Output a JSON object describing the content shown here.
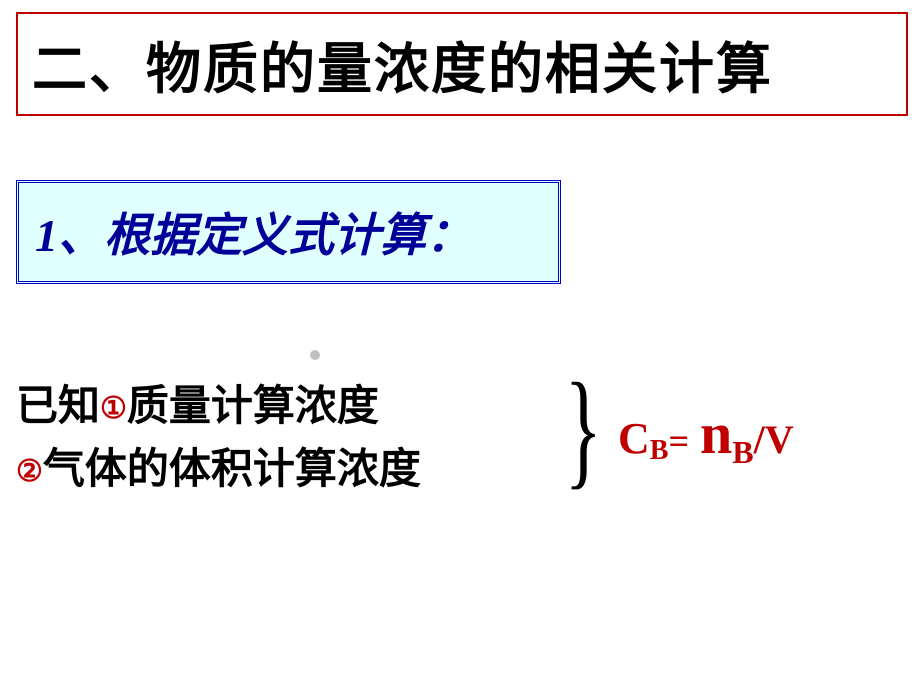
{
  "title": {
    "text": "二、物质的量浓度的相关计算",
    "border_color": "#c00000",
    "text_color": "#000000",
    "font_size": 55
  },
  "subtitle": {
    "number": "1",
    "text": "、根据定义式计算：",
    "border_color": "#0000cc",
    "background_color": "#e0ffff",
    "text_color": "#000099",
    "font_size": 46
  },
  "content": {
    "line1_prefix": "已知",
    "circle1": "①",
    "line1_text": "质量计算浓度",
    "circle2": "②",
    "line2_text": "气体的体积计算浓度",
    "circle_color": "#c00000",
    "text_color": "#000000",
    "font_size": 42
  },
  "brace": {
    "symbol": "}",
    "color": "#000000"
  },
  "formula": {
    "c": "C",
    "sub_b": "B",
    "equals": "=",
    "n": "n",
    "sub_b2": "B",
    "slash": "/",
    "v": "V",
    "color": "#c00000"
  },
  "dot": {
    "color": "#c0c0c0"
  }
}
